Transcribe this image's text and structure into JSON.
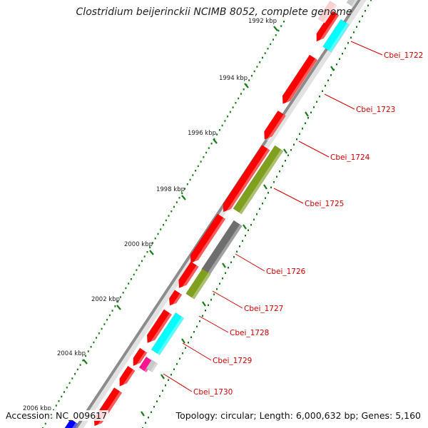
{
  "title": "Clostridium beijerinckii NCIMB 8052, complete genome",
  "accession": "Accession: NC_009617",
  "summary": "Topology: circular; Length: 6,000,632 bp; Genes: 5,160",
  "scale_labels": [
    {
      "kbp": 1992,
      "label": "1992 kbp"
    },
    {
      "kbp": 1994,
      "label": "1994 kbp"
    },
    {
      "kbp": 1996,
      "label": "1996 kbp"
    },
    {
      "kbp": 1998,
      "label": "1998 kbp"
    },
    {
      "kbp": 2000,
      "label": "2000 kbp"
    },
    {
      "kbp": 2002,
      "label": "2002 kbp"
    },
    {
      "kbp": 2004,
      "label": "2004 kbp"
    },
    {
      "kbp": 2006,
      "label": "2006 kbp"
    }
  ],
  "gene_labels": [
    "Cbei_1722",
    "Cbei_1723",
    "Cbei_1724",
    "Cbei_1725",
    "Cbei_1726",
    "Cbei_1727",
    "Cbei_1728",
    "Cbei_1729",
    "Cbei_1730"
  ],
  "colors": {
    "cds": "#ff0000",
    "backbone": "#8c8c8c",
    "cog_cyan": "#00ffff",
    "cog_olive": "#7f9f1f",
    "cog_gray": "#6e6e6e",
    "cog_magenta": "#ff1493",
    "cog_light": "#c8c8c8",
    "cog_blue": "#0000ff",
    "scale_tick": "#1a7a1a",
    "label_text": "#cc0000"
  }
}
